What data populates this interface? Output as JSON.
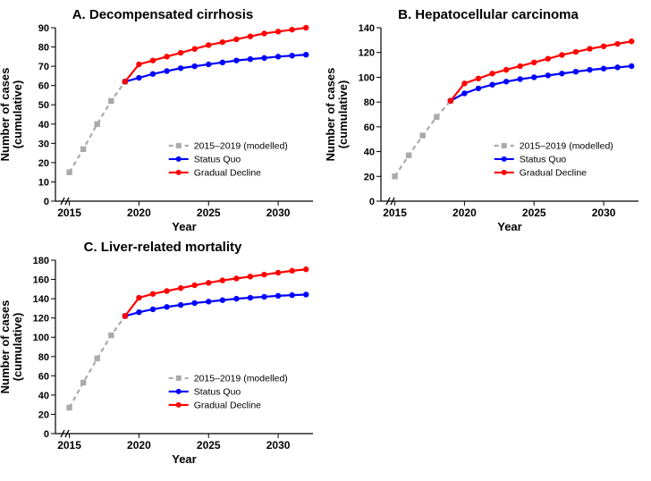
{
  "global": {
    "x_label": "Year",
    "y_label": "Number of cases\n(cumulative)",
    "legend": {
      "modelled": "2015–2019 (modelled)",
      "status_quo": "Status Quo",
      "gradual_decline": "Gradual Decline"
    },
    "colors": {
      "modelled": "#aaaaaa",
      "status_quo": "#0000ff",
      "gradual_decline": "#ff0000",
      "axis": "#000000",
      "background": "#ffffff",
      "frame_inner": "#ffffff"
    },
    "line_width": 2.2,
    "marker_size": 3.2,
    "frame_stroke_width": 1.2,
    "title_fontsize": 15,
    "label_fontsize": 13,
    "tick_fontsize": 11,
    "legend_fontsize": 10.5,
    "x_ticks": [
      2015,
      2020,
      2025,
      2030
    ],
    "x_lim": [
      2014,
      2032.5
    ]
  },
  "panels": [
    {
      "key": "A",
      "title": "A. Decompensated cirrhosis",
      "y_lim": [
        0,
        90
      ],
      "y_tick_step": 10,
      "series": {
        "modelled": {
          "x": [
            2015,
            2016,
            2017,
            2018,
            2019
          ],
          "y": [
            15,
            27,
            40,
            52,
            62
          ]
        },
        "status_quo": {
          "x": [
            2019,
            2020,
            2021,
            2022,
            2023,
            2024,
            2025,
            2026,
            2027,
            2028,
            2029,
            2030,
            2031,
            2032
          ],
          "y": [
            62,
            64,
            66,
            67.5,
            69,
            70,
            71,
            72,
            73,
            73.7,
            74.3,
            75,
            75.5,
            76
          ]
        },
        "gradual_decline": {
          "x": [
            2019,
            2020,
            2021,
            2022,
            2023,
            2024,
            2025,
            2026,
            2027,
            2028,
            2029,
            2030,
            2031,
            2032
          ],
          "y": [
            62,
            71,
            73,
            75,
            77,
            79,
            81,
            82.5,
            84,
            85.5,
            87,
            88,
            89,
            90
          ]
        }
      }
    },
    {
      "key": "B",
      "title": "B. Hepatocellular carcinoma",
      "y_lim": [
        0,
        140
      ],
      "y_tick_step": 20,
      "series": {
        "modelled": {
          "x": [
            2015,
            2016,
            2017,
            2018,
            2019
          ],
          "y": [
            20,
            37,
            53,
            68,
            81
          ]
        },
        "status_quo": {
          "x": [
            2019,
            2020,
            2021,
            2022,
            2023,
            2024,
            2025,
            2026,
            2027,
            2028,
            2029,
            2030,
            2031,
            2032
          ],
          "y": [
            81,
            87,
            91,
            94,
            96.5,
            98.5,
            100,
            101.5,
            103,
            104.5,
            106,
            107,
            108,
            109
          ]
        },
        "gradual_decline": {
          "x": [
            2019,
            2020,
            2021,
            2022,
            2023,
            2024,
            2025,
            2026,
            2027,
            2028,
            2029,
            2030,
            2031,
            2032
          ],
          "y": [
            81,
            95,
            99,
            103,
            106,
            109,
            112,
            115,
            118,
            120.5,
            123,
            125,
            127,
            129
          ]
        }
      }
    },
    {
      "key": "C",
      "title": "C. Liver-related mortality",
      "y_lim": [
        0,
        180
      ],
      "y_tick_step": 20,
      "series": {
        "modelled": {
          "x": [
            2015,
            2016,
            2017,
            2018,
            2019
          ],
          "y": [
            27,
            53,
            78,
            102,
            122
          ]
        },
        "status_quo": {
          "x": [
            2019,
            2020,
            2021,
            2022,
            2023,
            2024,
            2025,
            2026,
            2027,
            2028,
            2029,
            2030,
            2031,
            2032
          ],
          "y": [
            122,
            126,
            129,
            131.5,
            133.5,
            135.5,
            137,
            138.5,
            140,
            141,
            142,
            143,
            143.7,
            144.3
          ]
        },
        "gradual_decline": {
          "x": [
            2019,
            2020,
            2021,
            2022,
            2023,
            2024,
            2025,
            2026,
            2027,
            2028,
            2029,
            2030,
            2031,
            2032
          ],
          "y": [
            122,
            141,
            145,
            148,
            151,
            154,
            156.5,
            159,
            161,
            163,
            165,
            167,
            169,
            170.5
          ]
        }
      }
    }
  ]
}
